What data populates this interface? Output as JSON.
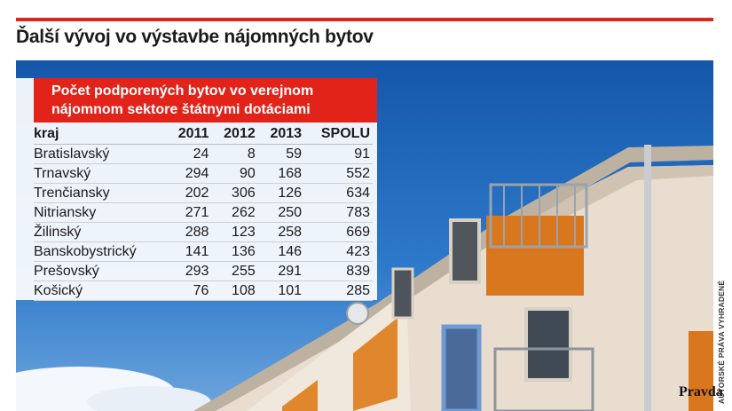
{
  "headline": "Ďalší vývoj vo výstavbe nájomných bytov",
  "card": {
    "title_line1": "Počet podporených bytov vo verejnom",
    "title_line2": "nájomnom sektore štátnymi dotáciami"
  },
  "chart_data": {
    "type": "table",
    "title": "Počet podporených bytov vo verejnom nájomnom sektore štátnymi dotáciami",
    "columns": [
      "kraj",
      "2011",
      "2012",
      "2013",
      "SPOLU"
    ],
    "rows": [
      [
        "Bratislavský",
        24,
        8,
        59,
        91
      ],
      [
        "Trnavský",
        294,
        90,
        168,
        552
      ],
      [
        "Trenčiansky",
        202,
        306,
        126,
        634
      ],
      [
        "Nitriansky",
        271,
        262,
        250,
        783
      ],
      [
        "Žilinský",
        288,
        123,
        258,
        669
      ],
      [
        "Banskobystrický",
        141,
        136,
        146,
        423
      ],
      [
        "Prešovský",
        293,
        255,
        291,
        839
      ],
      [
        "Košický",
        76,
        108,
        101,
        285
      ]
    ]
  },
  "credit": "AUTORSKÉ PRÁVA VYHRADENÉ",
  "logo": "Pravda",
  "colors": {
    "accent": "#e2231a",
    "sky": "#1c5fb1",
    "wall": "#efe6da",
    "balcony": "#d9771f"
  }
}
